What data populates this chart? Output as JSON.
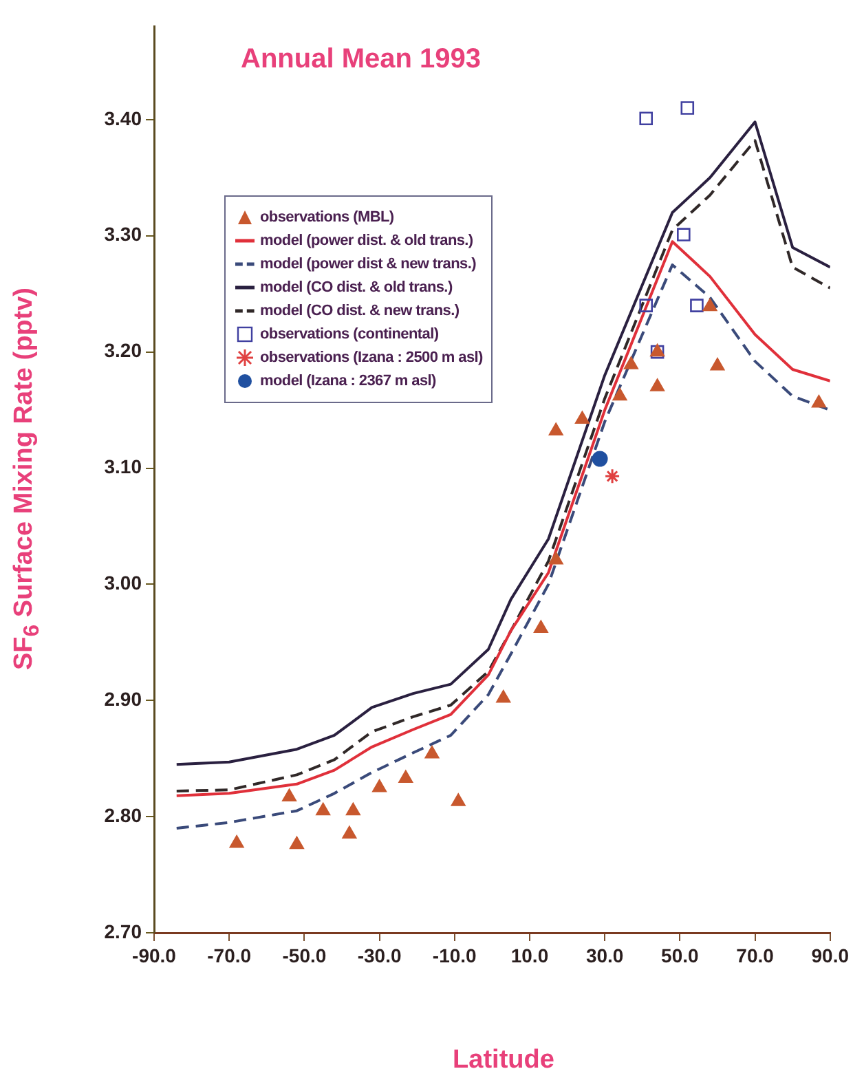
{
  "chart_data": {
    "type": "line",
    "title": "Annual Mean 1993",
    "xlabel": "Latitude",
    "ylabel": "SF$_{6}$ Surface Mixing Rate (pptv)",
    "xlim": [
      -90,
      90
    ],
    "ylim": [
      2.7,
      3.48
    ],
    "xticks": [
      {
        "value": -90,
        "label": "-90.0"
      },
      {
        "value": -70,
        "label": "-70.0"
      },
      {
        "value": -50,
        "label": "-50.0"
      },
      {
        "value": -30,
        "label": "-30.0"
      },
      {
        "value": -10,
        "label": "-10.0"
      },
      {
        "value": 10,
        "label": "10.0"
      },
      {
        "value": 30,
        "label": "30.0"
      },
      {
        "value": 50,
        "label": "50.0"
      },
      {
        "value": 70,
        "label": "70.0"
      },
      {
        "value": 90,
        "label": "90.0"
      }
    ],
    "yticks": [
      {
        "value": 2.7,
        "label": "2.70"
      },
      {
        "value": 2.8,
        "label": "2.80"
      },
      {
        "value": 2.9,
        "label": "2.90"
      },
      {
        "value": 3.0,
        "label": "3.00"
      },
      {
        "value": 3.1,
        "label": "3.10"
      },
      {
        "value": 3.2,
        "label": "3.20"
      },
      {
        "value": 3.3,
        "label": "3.30"
      },
      {
        "value": 3.4,
        "label": "3.40"
      }
    ],
    "legend": "top left",
    "series": [
      {
        "name": "observations (MBL)",
        "type": "scatter",
        "marker": "triangle",
        "color": "#c8582e",
        "x": [
          -68,
          -54,
          -52,
          -45,
          -37,
          -38,
          -30,
          -23,
          -16,
          -9,
          3,
          13,
          17,
          17,
          24,
          34,
          37,
          44,
          44,
          58,
          60,
          87
        ],
        "values": [
          2.777,
          2.817,
          2.776,
          2.805,
          2.805,
          2.785,
          2.825,
          2.833,
          2.854,
          2.813,
          2.902,
          2.962,
          3.021,
          3.132,
          3.142,
          3.162,
          3.189,
          3.17,
          3.2,
          3.239,
          3.188,
          3.156
        ]
      },
      {
        "name": "model (power dist. & old trans.)",
        "type": "line",
        "marker": "none",
        "line_style": "solid",
        "color": "#e0303a",
        "x": [
          -84,
          -70,
          -52,
          -42,
          -32,
          -21,
          -11,
          -1,
          5,
          15,
          30,
          48,
          58,
          70,
          80,
          90
        ],
        "values": [
          2.818,
          2.82,
          2.828,
          2.84,
          2.86,
          2.875,
          2.888,
          2.922,
          2.96,
          3.01,
          3.15,
          3.295,
          3.265,
          3.215,
          3.185,
          3.175
        ]
      },
      {
        "name": "model (power dist & new trans.)",
        "type": "line",
        "marker": "none",
        "line_style": "dashed",
        "color": "#3a4a7a",
        "x": [
          -84,
          -70,
          -52,
          -42,
          -32,
          -21,
          -11,
          -1,
          5,
          15,
          30,
          48,
          58,
          70,
          80,
          90
        ],
        "values": [
          2.79,
          2.795,
          2.805,
          2.82,
          2.838,
          2.855,
          2.87,
          2.905,
          2.94,
          3.0,
          3.14,
          3.275,
          3.247,
          3.192,
          3.162,
          3.15
        ]
      },
      {
        "name": "model (CO dist. & old trans.)",
        "type": "line",
        "marker": "none",
        "line_style": "solid",
        "color": "#2a2040",
        "x": [
          -84,
          -70,
          -52,
          -42,
          -32,
          -21,
          -11,
          -1,
          5,
          15,
          30,
          48,
          58,
          70,
          80,
          90
        ],
        "values": [
          2.845,
          2.847,
          2.858,
          2.87,
          2.894,
          2.906,
          2.914,
          2.944,
          2.987,
          3.039,
          3.18,
          3.32,
          3.35,
          3.398,
          3.29,
          3.273
        ]
      },
      {
        "name": "model (CO dist. & new trans.)",
        "type": "line",
        "marker": "none",
        "line_style": "dashed",
        "color": "#302828",
        "x": [
          -84,
          -70,
          -52,
          -42,
          -32,
          -21,
          -11,
          -1,
          5,
          15,
          30,
          48,
          58,
          70,
          80,
          90
        ],
        "values": [
          2.822,
          2.823,
          2.836,
          2.849,
          2.873,
          2.886,
          2.896,
          2.925,
          2.96,
          3.02,
          3.16,
          3.305,
          3.335,
          3.382,
          3.273,
          3.255
        ]
      },
      {
        "name": "observations (continental)",
        "type": "scatter",
        "marker": "square",
        "color": "#4040a0",
        "x": [
          41,
          52,
          51,
          41,
          54.5,
          44
        ],
        "values": [
          3.401,
          3.41,
          3.301,
          3.24,
          3.24,
          3.2
        ]
      },
      {
        "name": "observations (Izana : 2500 m asl)",
        "type": "scatter",
        "marker": "cross",
        "color": "#e04040",
        "x": [
          32
        ],
        "values": [
          3.093
        ]
      },
      {
        "name": "model (Izana : 2367 m asl)",
        "type": "scatter",
        "marker": "circle",
        "color": "#2050a0",
        "x": [
          28.7
        ],
        "values": [
          3.108
        ]
      }
    ]
  }
}
